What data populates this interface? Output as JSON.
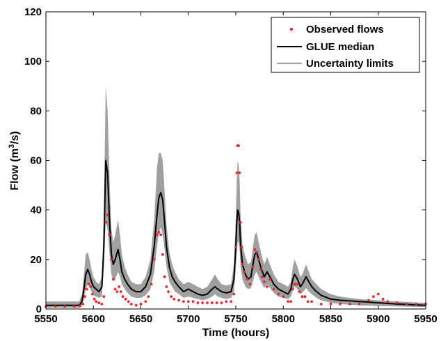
{
  "chart_data": {
    "type": "line",
    "title": "",
    "xlabel": "Time (hours)",
    "ylabel_parts": [
      "Flow (m",
      "3",
      "/s)"
    ],
    "xlim": [
      5550,
      5950
    ],
    "ylim": [
      0,
      120
    ],
    "xticks": [
      5550,
      5600,
      5650,
      5700,
      5750,
      5800,
      5850,
      5900,
      5950
    ],
    "yticks": [
      0,
      20,
      40,
      60,
      80,
      100,
      120
    ],
    "legend_position": "top-right",
    "colors": {
      "observed": "#e8262b",
      "median": "#000000",
      "uncertainty": "#a0a0a0"
    },
    "series": [
      {
        "name": "Observed flows",
        "style": "markers",
        "x": [
          5550,
          5560,
          5570,
          5580,
          5586,
          5589,
          5591,
          5593,
          5595,
          5597,
          5599,
          5601,
          5603,
          5606,
          5609,
          5611,
          5613,
          5615,
          5617,
          5619,
          5621,
          5623,
          5625,
          5627,
          5629,
          5631,
          5634,
          5637,
          5640,
          5645,
          5650,
          5655,
          5658,
          5661,
          5664,
          5667,
          5669,
          5671,
          5673,
          5675,
          5677,
          5679,
          5682,
          5685,
          5690,
          5695,
          5700,
          5705,
          5710,
          5715,
          5720,
          5725,
          5730,
          5735,
          5740,
          5745,
          5748,
          5750,
          5751,
          5752,
          5753,
          5754,
          5755,
          5756,
          5757,
          5759,
          5762,
          5765,
          5768,
          5770,
          5772,
          5774,
          5776,
          5778,
          5780,
          5783,
          5786,
          5790,
          5795,
          5800,
          5805,
          5808,
          5810,
          5812,
          5814,
          5817,
          5820,
          5823,
          5826,
          5830,
          5840,
          5850,
          5860,
          5870,
          5880,
          5890,
          5895,
          5900,
          5905,
          5910,
          5920,
          5930,
          5940,
          5950
        ],
        "y": [
          1,
          1,
          1,
          1,
          1.2,
          2,
          5,
          8,
          10,
          9,
          6,
          4,
          3,
          2.5,
          2,
          5,
          35,
          38,
          30,
          20,
          12,
          8,
          7,
          9,
          7,
          5,
          4,
          3,
          2,
          1.5,
          2,
          3,
          5,
          10,
          20,
          30,
          31,
          30,
          22,
          13,
          9,
          7,
          5,
          4,
          3.5,
          3,
          3,
          3,
          2.5,
          2.5,
          2.5,
          2.5,
          2.5,
          2.5,
          3,
          3,
          6,
          25,
          55,
          66,
          66,
          55,
          35,
          25,
          18,
          15,
          12,
          10,
          17,
          24,
          23,
          20,
          16,
          13,
          11,
          9,
          12,
          8,
          6,
          5,
          3,
          3,
          8,
          10,
          10,
          7,
          5,
          5,
          3,
          3,
          2,
          2,
          2,
          2,
          2,
          3.5,
          5,
          6,
          4,
          3,
          2.5,
          2,
          2,
          2
        ]
      },
      {
        "name": "GLUE median",
        "style": "line",
        "x": [
          5550,
          5585,
          5588,
          5590,
          5592,
          5594,
          5596,
          5598,
          5600,
          5603,
          5606,
          5609,
          5611,
          5613,
          5615,
          5617,
          5619,
          5621,
          5623,
          5626,
          5628,
          5630,
          5633,
          5636,
          5640,
          5645,
          5650,
          5655,
          5660,
          5664,
          5667,
          5669,
          5671,
          5673,
          5675,
          5677,
          5680,
          5683,
          5686,
          5690,
          5695,
          5700,
          5705,
          5710,
          5715,
          5720,
          5725,
          5728,
          5731,
          5735,
          5740,
          5745,
          5748,
          5750,
          5751,
          5752,
          5753,
          5754,
          5755,
          5757,
          5760,
          5763,
          5766,
          5768,
          5770,
          5772,
          5774,
          5777,
          5780,
          5783,
          5786,
          5790,
          5795,
          5800,
          5805,
          5808,
          5810,
          5812,
          5815,
          5818,
          5820,
          5824,
          5827,
          5830,
          5835,
          5840,
          5850,
          5860,
          5880,
          5900,
          5920,
          5950
        ],
        "y": [
          1.5,
          1.5,
          3,
          8,
          14,
          16,
          14,
          11,
          9,
          8,
          7,
          9,
          25,
          60,
          55,
          35,
          22,
          18,
          20,
          24,
          20,
          15,
          12,
          10,
          8,
          7,
          7,
          9,
          14,
          25,
          38,
          45,
          47,
          44,
          35,
          25,
          17,
          13,
          11,
          9,
          7,
          8,
          7,
          6,
          5.5,
          6,
          8,
          9,
          8,
          7,
          6.5,
          7,
          12,
          25,
          35,
          40,
          39,
          35,
          26,
          18,
          14,
          12,
          13,
          18,
          22,
          23,
          20,
          16,
          13,
          15,
          13,
          10,
          8,
          7,
          6,
          8,
          12,
          14,
          12,
          9,
          10,
          13,
          11,
          9,
          7,
          5.5,
          4,
          3.5,
          3,
          2.5,
          2,
          1.5
        ]
      },
      {
        "name": "Uncertainty limits",
        "style": "band",
        "x": [
          5550,
          5585,
          5588,
          5590,
          5592,
          5594,
          5596,
          5598,
          5600,
          5603,
          5606,
          5609,
          5611,
          5613,
          5615,
          5617,
          5619,
          5621,
          5623,
          5626,
          5628,
          5630,
          5633,
          5636,
          5640,
          5645,
          5650,
          5655,
          5660,
          5664,
          5667,
          5669,
          5671,
          5673,
          5675,
          5677,
          5680,
          5683,
          5686,
          5690,
          5695,
          5700,
          5705,
          5710,
          5715,
          5720,
          5725,
          5728,
          5731,
          5735,
          5740,
          5745,
          5748,
          5750,
          5751,
          5752,
          5753,
          5754,
          5755,
          5757,
          5760,
          5763,
          5766,
          5768,
          5770,
          5772,
          5774,
          5777,
          5780,
          5783,
          5786,
          5790,
          5795,
          5800,
          5805,
          5808,
          5810,
          5812,
          5815,
          5818,
          5820,
          5824,
          5827,
          5830,
          5835,
          5840,
          5850,
          5860,
          5880,
          5900,
          5920,
          5950
        ],
        "lower": [
          0.5,
          0.5,
          1.5,
          4,
          8,
          10,
          9,
          7,
          5.5,
          5,
          4.5,
          5,
          17,
          35,
          32,
          22,
          14,
          11,
          12,
          15,
          13,
          10,
          8,
          6.5,
          5,
          4.5,
          4.5,
          5.5,
          8,
          15,
          25,
          31,
          33,
          30,
          24,
          17,
          11,
          9,
          7,
          6,
          4.5,
          5,
          4.5,
          4,
          3.5,
          4,
          5,
          6,
          5,
          4.5,
          4,
          4.5,
          7,
          16,
          23,
          27,
          27,
          24,
          17,
          12,
          9,
          8,
          8.5,
          11,
          14,
          15,
          13,
          10.5,
          8.5,
          10,
          8.5,
          6.5,
          5,
          4.5,
          4,
          5,
          7.5,
          9,
          8,
          6,
          6.5,
          8.5,
          7,
          6,
          4.5,
          3.5,
          2.5,
          2,
          1.5,
          1.2,
          1,
          0.8
        ],
        "upper": [
          3,
          3,
          6,
          14,
          22,
          23,
          20,
          16,
          13,
          11,
          10,
          13,
          38,
          90,
          80,
          52,
          32,
          27,
          30,
          36,
          30,
          22,
          17,
          14,
          11,
          10,
          10,
          13,
          20,
          36,
          57,
          63,
          63,
          60,
          48,
          34,
          23,
          18,
          15,
          12,
          10,
          11,
          10,
          9,
          8,
          9,
          12,
          14,
          12,
          10,
          9.5,
          10,
          18,
          37,
          52,
          60,
          58,
          52,
          38,
          26,
          21,
          18,
          19,
          25,
          30,
          31,
          27,
          22,
          18,
          21,
          18,
          14,
          11,
          10,
          9,
          11,
          17,
          20,
          17,
          13,
          14,
          18,
          15,
          12,
          10,
          8,
          6,
          5,
          4,
          3.5,
          3,
          2.5
        ]
      }
    ]
  }
}
